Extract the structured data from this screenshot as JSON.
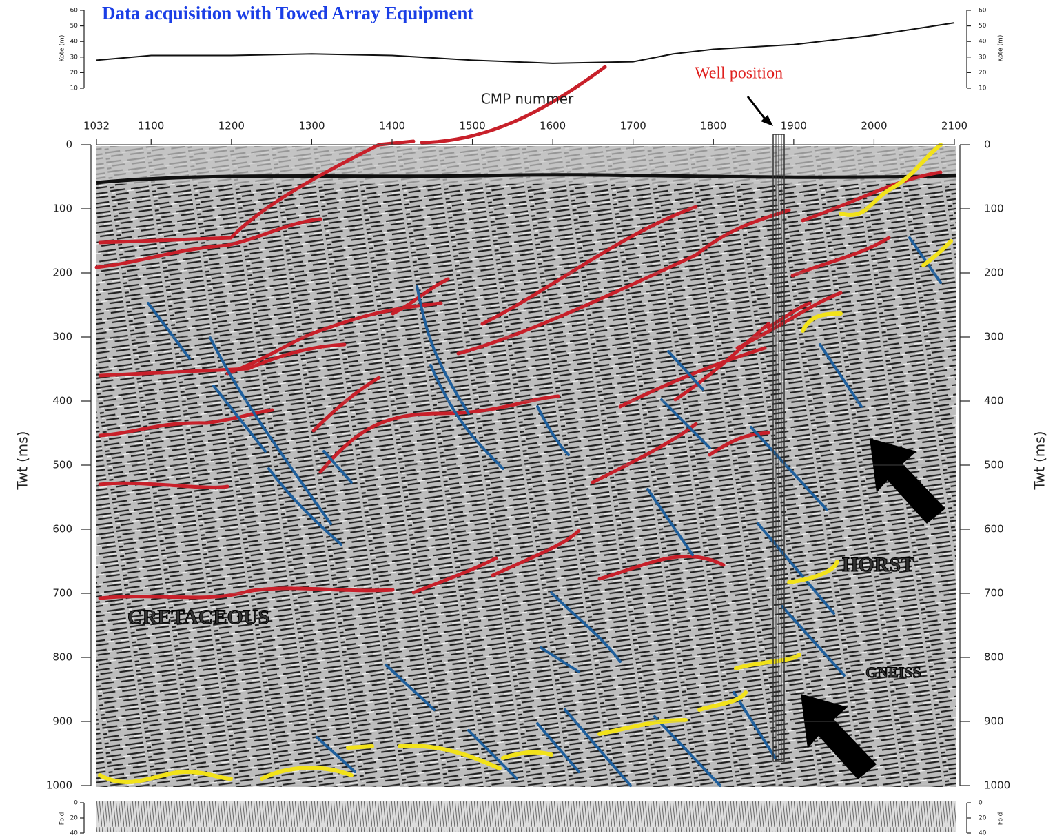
{
  "title": "Data acquisition with Towed Array Equipment",
  "elevation": {
    "axis_label": "Kote (m)",
    "ylim": [
      10,
      60
    ],
    "yticks": [
      10,
      20,
      30,
      40,
      50,
      60
    ],
    "x": [
      1032,
      1100,
      1200,
      1300,
      1400,
      1500,
      1550,
      1600,
      1700,
      1750,
      1800,
      1900,
      2000,
      2100
    ],
    "values": [
      28,
      31,
      31,
      32,
      31,
      28,
      27,
      26,
      27,
      32,
      35,
      38,
      44,
      52
    ]
  },
  "cmp": {
    "axis_label": "CMP nummer",
    "xlim": [
      1032,
      2100
    ],
    "xticks": [
      1032,
      1100,
      1200,
      1300,
      1400,
      1500,
      1600,
      1700,
      1800,
      1900,
      2000,
      2100
    ]
  },
  "twt": {
    "axis_label": "Twt (ms)",
    "ylim": [
      0,
      1000
    ],
    "yticks": [
      0,
      100,
      200,
      300,
      400,
      500,
      600,
      700,
      800,
      900,
      1000
    ]
  },
  "fold": {
    "axis_label": "Fold",
    "ylim": [
      0,
      40
    ],
    "yticks": [
      0,
      20,
      40
    ]
  },
  "annotations": {
    "well": "Well position",
    "cretaceous": "CRETACEOUS",
    "horst": "HORST",
    "gneiss": "GNEISS"
  }
}
